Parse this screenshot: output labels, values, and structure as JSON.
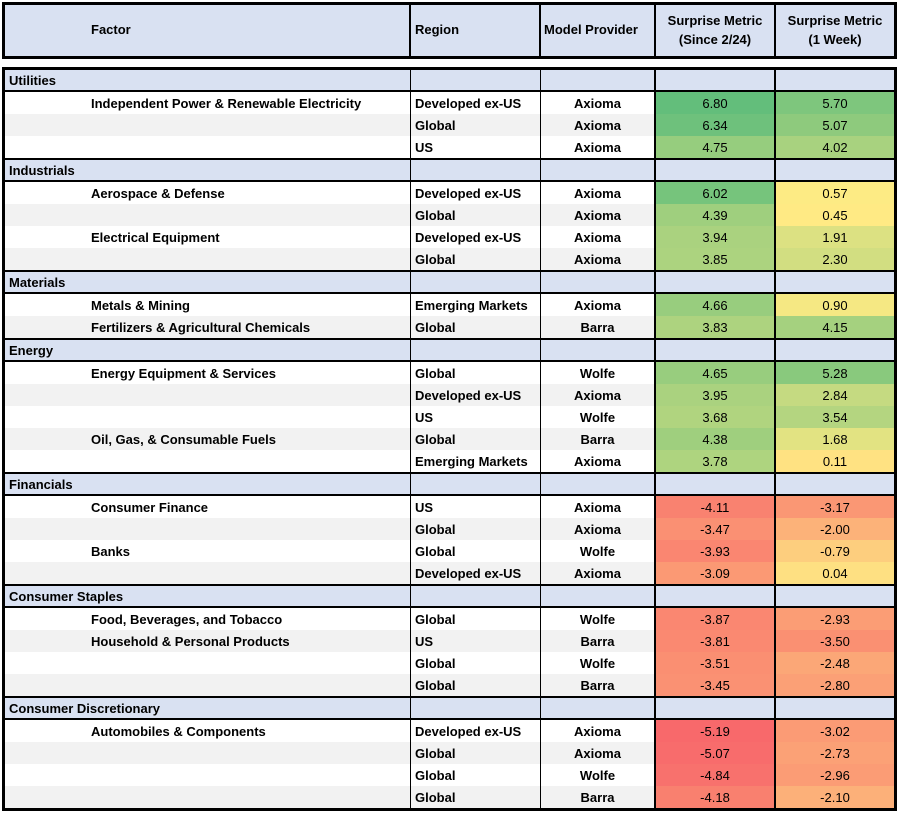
{
  "theme": {
    "header_bg": "#D9E1F2",
    "band_bg": "#F2F2F2",
    "border_color": "#000000"
  },
  "chart_data": {
    "type": "table",
    "subtype": "heatmap",
    "columns": [
      {
        "id": "factor",
        "line1": "Factor",
        "line2": ""
      },
      {
        "id": "region",
        "line1": "Region",
        "line2": ""
      },
      {
        "id": "provider",
        "line1": "Model Provider",
        "line2": ""
      },
      {
        "id": "since",
        "line1": "Surprise Metric",
        "line2": "(Since 2/24)"
      },
      {
        "id": "week",
        "line1": "Surprise Metric",
        "line2": "(1 Week)"
      }
    ],
    "heat_scale": {
      "min_value": -5.19,
      "mid_value": 0.5,
      "max_value": 6.8,
      "min_color": "#F8696B",
      "mid_color": "#FFEB84",
      "max_color": "#63BE7B"
    },
    "sections": [
      {
        "name": "Utilities",
        "rows": [
          {
            "factor": "Independent Power & Renewable Electricity",
            "region": "Developed ex-US",
            "provider": "Axioma",
            "since": 6.8,
            "week": 5.7
          },
          {
            "factor": "",
            "region": "Global",
            "provider": "Axioma",
            "since": 6.34,
            "week": 5.07
          },
          {
            "factor": "",
            "region": "US",
            "provider": "Axioma",
            "since": 4.75,
            "week": 4.02
          }
        ]
      },
      {
        "name": "Industrials",
        "rows": [
          {
            "factor": "Aerospace & Defense",
            "region": "Developed ex-US",
            "provider": "Axioma",
            "since": 6.02,
            "week": 0.57
          },
          {
            "factor": "",
            "region": "Global",
            "provider": "Axioma",
            "since": 4.39,
            "week": 0.45
          },
          {
            "factor": "Electrical Equipment",
            "region": "Developed ex-US",
            "provider": "Axioma",
            "since": 3.94,
            "week": 1.91
          },
          {
            "factor": "",
            "region": "Global",
            "provider": "Axioma",
            "since": 3.85,
            "week": 2.3
          }
        ]
      },
      {
        "name": "Materials",
        "rows": [
          {
            "factor": "Metals & Mining",
            "region": "Emerging Markets",
            "provider": "Axioma",
            "since": 4.66,
            "week": 0.9
          },
          {
            "factor": "Fertilizers & Agricultural Chemicals",
            "region": "Global",
            "provider": "Barra",
            "since": 3.83,
            "week": 4.15
          }
        ]
      },
      {
        "name": "Energy",
        "rows": [
          {
            "factor": "Energy Equipment & Services",
            "region": "Global",
            "provider": "Wolfe",
            "since": 4.65,
            "week": 5.28
          },
          {
            "factor": "",
            "region": "Developed ex-US",
            "provider": "Axioma",
            "since": 3.95,
            "week": 2.84
          },
          {
            "factor": "",
            "region": "US",
            "provider": "Wolfe",
            "since": 3.68,
            "week": 3.54
          },
          {
            "factor": "Oil, Gas, & Consumable Fuels",
            "region": "Global",
            "provider": "Barra",
            "since": 4.38,
            "week": 1.68
          },
          {
            "factor": "",
            "region": "Emerging Markets",
            "provider": "Axioma",
            "since": 3.78,
            "week": 0.11
          }
        ]
      },
      {
        "name": "Financials",
        "rows": [
          {
            "factor": "Consumer Finance",
            "region": "US",
            "provider": "Axioma",
            "since": -4.11,
            "week": -3.17
          },
          {
            "factor": "",
            "region": "Global",
            "provider": "Axioma",
            "since": -3.47,
            "week": -2.0
          },
          {
            "factor": "Banks",
            "region": "Global",
            "provider": "Wolfe",
            "since": -3.93,
            "week": -0.79
          },
          {
            "factor": "",
            "region": "Developed ex-US",
            "provider": "Axioma",
            "since": -3.09,
            "week": 0.04
          }
        ]
      },
      {
        "name": "Consumer Staples",
        "rows": [
          {
            "factor": "Food, Beverages, and Tobacco",
            "region": "Global",
            "provider": "Wolfe",
            "since": -3.87,
            "week": -2.93
          },
          {
            "factor": "Household & Personal Products",
            "region": "US",
            "provider": "Barra",
            "since": -3.81,
            "week": -3.5
          },
          {
            "factor": "",
            "region": "Global",
            "provider": "Wolfe",
            "since": -3.51,
            "week": -2.48
          },
          {
            "factor": "",
            "region": "Global",
            "provider": "Barra",
            "since": -3.45,
            "week": -2.8
          }
        ]
      },
      {
        "name": "Consumer Discretionary",
        "rows": [
          {
            "factor": "Automobiles & Components",
            "region": "Developed ex-US",
            "provider": "Axioma",
            "since": -5.19,
            "week": -3.02
          },
          {
            "factor": "",
            "region": "Global",
            "provider": "Axioma",
            "since": -5.07,
            "week": -2.73
          },
          {
            "factor": "",
            "region": "Global",
            "provider": "Wolfe",
            "since": -4.84,
            "week": -2.96
          },
          {
            "factor": "",
            "region": "Global",
            "provider": "Barra",
            "since": -4.18,
            "week": -2.1
          }
        ]
      }
    ]
  }
}
